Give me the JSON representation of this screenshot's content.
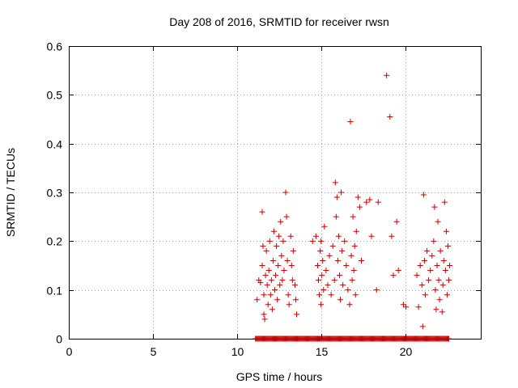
{
  "chart_data": {
    "type": "scatter",
    "title": "Day 208 of 2016, SRMTID for receiver rwsn",
    "xlabel": "GPS time / hours",
    "ylabel": "SRMTID / TECUs",
    "xlim": [
      0,
      24.5
    ],
    "ylim": [
      0,
      0.6
    ],
    "xticks": [
      0,
      5,
      10,
      15,
      20
    ],
    "xtick_labels": [
      "0",
      "5",
      "10",
      "15",
      "20"
    ],
    "yticks": [
      0,
      0.1,
      0.2,
      0.3,
      0.4,
      0.5,
      0.6
    ],
    "ytick_labels": [
      "0",
      "0.1",
      "0.2",
      "0.3",
      "0.4",
      "0.5",
      "0.6"
    ],
    "grid": true,
    "marker": "+",
    "color": "#cc0000",
    "zero_series_range": [
      11.1,
      22.6
    ],
    "series": [
      {
        "name": "SRMTID",
        "points": [
          [
            11.2,
            0.08
          ],
          [
            11.3,
            0.12
          ],
          [
            11.4,
            0.115
          ],
          [
            11.5,
            0.26
          ],
          [
            11.5,
            0.15
          ],
          [
            11.55,
            0.19
          ],
          [
            11.6,
            0.09
          ],
          [
            11.6,
            0.05
          ],
          [
            11.65,
            0.04
          ],
          [
            11.7,
            0.13
          ],
          [
            11.75,
            0.18
          ],
          [
            11.8,
            0.11
          ],
          [
            11.85,
            0.07
          ],
          [
            11.9,
            0.14
          ],
          [
            11.95,
            0.2
          ],
          [
            12.0,
            0.09
          ],
          [
            12.05,
            0.12
          ],
          [
            12.1,
            0.06
          ],
          [
            12.15,
            0.16
          ],
          [
            12.2,
            0.22
          ],
          [
            12.25,
            0.1
          ],
          [
            12.3,
            0.13
          ],
          [
            12.35,
            0.19
          ],
          [
            12.4,
            0.08
          ],
          [
            12.45,
            0.15
          ],
          [
            12.5,
            0.21
          ],
          [
            12.55,
            0.11
          ],
          [
            12.6,
            0.24
          ],
          [
            12.65,
            0.17
          ],
          [
            12.7,
            0.12
          ],
          [
            12.75,
            0.2
          ],
          [
            12.8,
            0.14
          ],
          [
            12.9,
            0.3
          ],
          [
            12.95,
            0.25
          ],
          [
            13.0,
            0.16
          ],
          [
            13.05,
            0.09
          ],
          [
            13.1,
            0.07
          ],
          [
            13.2,
            0.21
          ],
          [
            13.25,
            0.15
          ],
          [
            13.3,
            0.12
          ],
          [
            13.35,
            0.18
          ],
          [
            13.45,
            0.11
          ],
          [
            13.5,
            0.08
          ],
          [
            13.55,
            0.05
          ],
          [
            14.5,
            0.2
          ],
          [
            14.7,
            0.21
          ],
          [
            14.8,
            0.15
          ],
          [
            14.85,
            0.12
          ],
          [
            14.9,
            0.09
          ],
          [
            14.95,
            0.18
          ],
          [
            15.0,
            0.07
          ],
          [
            15.0,
            0.2
          ],
          [
            15.05,
            0.13
          ],
          [
            15.1,
            0.16
          ],
          [
            15.15,
            0.1
          ],
          [
            15.2,
            0.23
          ],
          [
            15.3,
            0.14
          ],
          [
            15.4,
            0.11
          ],
          [
            15.5,
            0.17
          ],
          [
            15.6,
            0.09
          ],
          [
            15.7,
            0.19
          ],
          [
            15.8,
            0.12
          ],
          [
            15.85,
            0.32
          ],
          [
            15.9,
            0.25
          ],
          [
            15.95,
            0.29
          ],
          [
            16.0,
            0.16
          ],
          [
            16.05,
            0.21
          ],
          [
            16.1,
            0.13
          ],
          [
            16.15,
            0.08
          ],
          [
            16.2,
            0.3
          ],
          [
            16.25,
            0.18
          ],
          [
            16.3,
            0.11
          ],
          [
            16.4,
            0.2
          ],
          [
            16.5,
            0.15
          ],
          [
            16.6,
            0.1
          ],
          [
            16.7,
            0.07
          ],
          [
            16.75,
            0.445
          ],
          [
            16.8,
            0.17
          ],
          [
            16.85,
            0.12
          ],
          [
            16.9,
            0.25
          ],
          [
            16.95,
            0.14
          ],
          [
            17.0,
            0.19
          ],
          [
            17.05,
            0.09
          ],
          [
            17.1,
            0.22
          ],
          [
            17.2,
            0.29
          ],
          [
            17.3,
            0.27
          ],
          [
            17.4,
            0.16
          ],
          [
            17.7,
            0.28
          ],
          [
            17.9,
            0.285
          ],
          [
            18.0,
            0.21
          ],
          [
            18.3,
            0.1
          ],
          [
            18.4,
            0.28
          ],
          [
            18.9,
            0.54
          ],
          [
            19.1,
            0.455
          ],
          [
            19.2,
            0.21
          ],
          [
            19.3,
            0.13
          ],
          [
            19.5,
            0.24
          ],
          [
            19.6,
            0.14
          ],
          [
            19.9,
            0.07
          ],
          [
            20.05,
            0.065
          ],
          [
            20.7,
            0.13
          ],
          [
            20.8,
            0.065
          ],
          [
            20.9,
            0.15
          ],
          [
            21.0,
            0.11
          ],
          [
            21.05,
            0.025
          ],
          [
            21.1,
            0.295
          ],
          [
            21.15,
            0.16
          ],
          [
            21.2,
            0.09
          ],
          [
            21.3,
            0.18
          ],
          [
            21.4,
            0.12
          ],
          [
            21.5,
            0.14
          ],
          [
            21.6,
            0.17
          ],
          [
            21.7,
            0.2
          ],
          [
            21.75,
            0.27
          ],
          [
            21.8,
            0.1
          ],
          [
            21.85,
            0.06
          ],
          [
            21.9,
            0.15
          ],
          [
            21.95,
            0.24
          ],
          [
            22.0,
            0.12
          ],
          [
            22.05,
            0.08
          ],
          [
            22.1,
            0.18
          ],
          [
            22.2,
            0.055
          ],
          [
            22.25,
            0.11
          ],
          [
            22.3,
            0.16
          ],
          [
            22.35,
            0.28
          ],
          [
            22.4,
            0.14
          ],
          [
            22.45,
            0.22
          ],
          [
            22.5,
            0.09
          ],
          [
            22.55,
            0.19
          ],
          [
            22.6,
            0.12
          ],
          [
            22.65,
            0.15
          ]
        ]
      }
    ]
  }
}
